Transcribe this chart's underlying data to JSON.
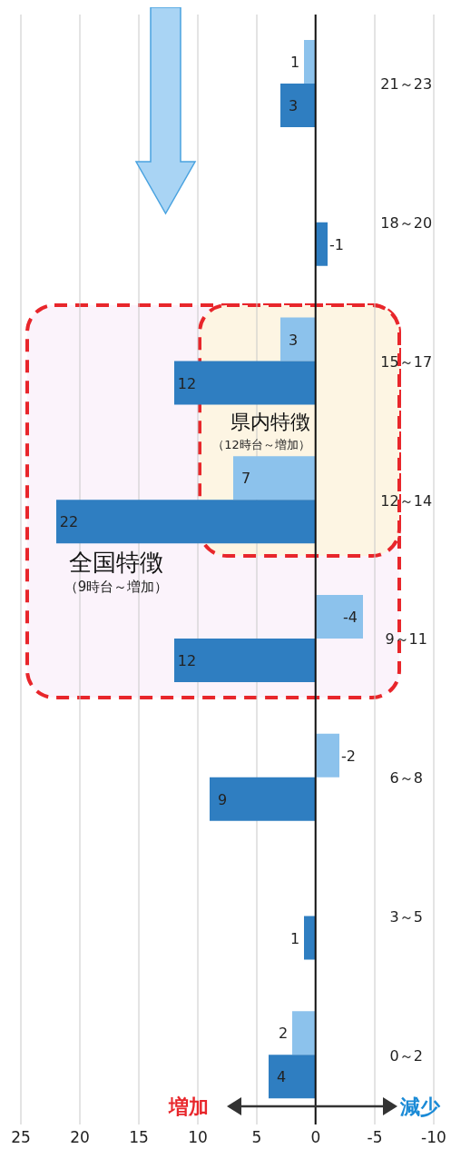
{
  "chart_data": {
    "type": "bar",
    "orientation": "horizontal",
    "categories": [
      "21～23",
      "18～20",
      "15～17",
      "12～14",
      "9～11",
      "6～8",
      "3～5",
      "0～2"
    ],
    "series": [
      {
        "color": "#8cc2ec",
        "values": [
          1,
          null,
          3,
          7,
          -4,
          -2,
          null,
          2
        ]
      },
      {
        "color": "#2f7ec1",
        "values": [
          3,
          -1,
          12,
          22,
          12,
          9,
          1,
          4
        ]
      }
    ],
    "xlim": [
      25,
      -10
    ],
    "xticks": [
      -10,
      -5,
      0,
      5,
      10,
      15,
      20,
      25
    ],
    "grid": "x",
    "data_labels": true,
    "annotations": [
      "全国特徴",
      "（9時台～増加）",
      "県内特徴",
      "（12時台～増加）",
      "増加",
      "減少"
    ]
  }
}
